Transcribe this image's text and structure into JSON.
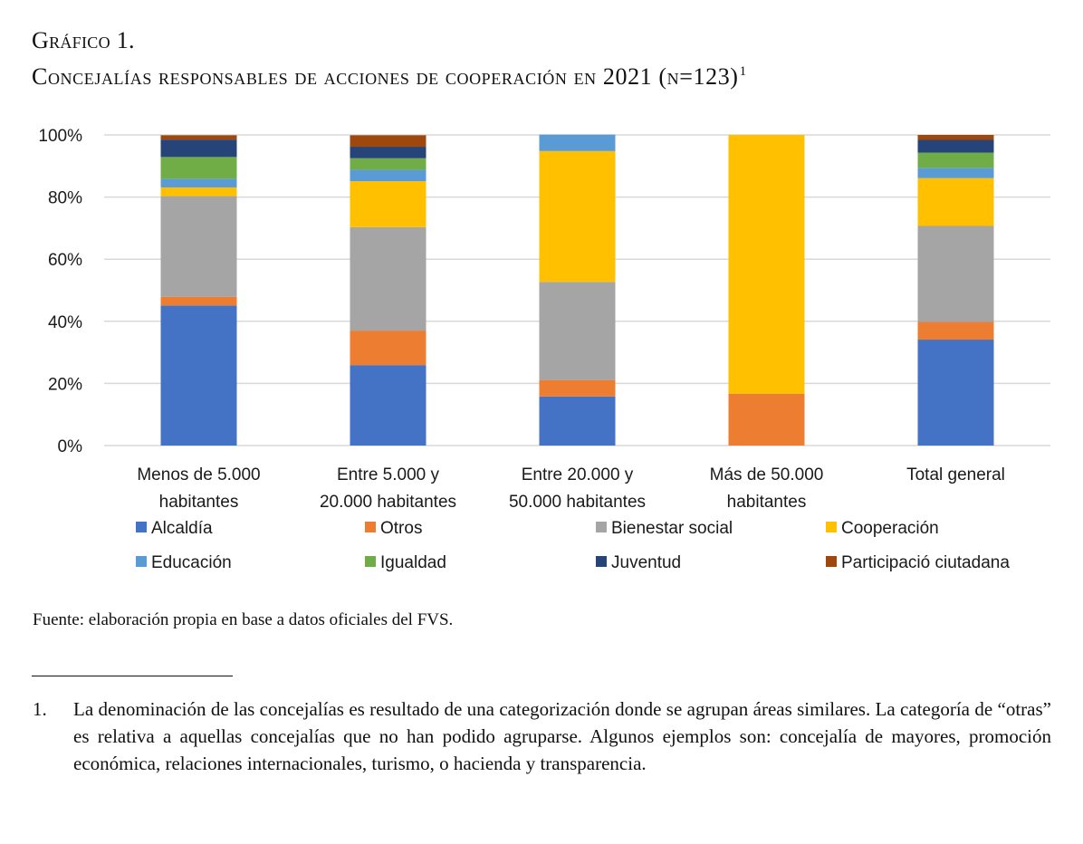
{
  "figure": {
    "label": "Gráfico 1.",
    "title": "Concejalías responsables de acciones de cooperación en 2021 (n=123)",
    "title_footnote_mark": "1"
  },
  "chart_data": {
    "type": "bar",
    "stacked": true,
    "percent_stacked": true,
    "title": "Concejalías responsables de acciones de cooperación en 2021 (n=123)",
    "xlabel": "",
    "ylabel": "",
    "ylim": [
      0,
      100
    ],
    "yticks": [
      "0%",
      "20%",
      "40%",
      "60%",
      "80%",
      "100%"
    ],
    "ytick_values": [
      0,
      20,
      40,
      60,
      80,
      100
    ],
    "grid": true,
    "legend_position": "bottom",
    "categories": [
      [
        "Menos de 5.000",
        "habitantes"
      ],
      [
        "Entre 5.000 y",
        "20.000 habitantes"
      ],
      [
        "Entre 20.000 y",
        "50.000 habitantes"
      ],
      [
        "Más de 50.000",
        "habitantes"
      ],
      [
        "Total general"
      ]
    ],
    "series": [
      {
        "name": "Alcaldía",
        "color": "#4472C4",
        "values": [
          45.1,
          25.9,
          15.8,
          0.0,
          34.1
        ]
      },
      {
        "name": "Otros",
        "color": "#ED7D31",
        "values": [
          2.8,
          11.1,
          5.3,
          16.7,
          5.7
        ]
      },
      {
        "name": "Bienestar social",
        "color": "#A5A5A5",
        "values": [
          32.4,
          33.3,
          31.6,
          0.0,
          30.9
        ]
      },
      {
        "name": "Cooperación",
        "color": "#FFC000",
        "values": [
          2.8,
          14.8,
          42.1,
          83.3,
          15.4
        ]
      },
      {
        "name": "Educación",
        "color": "#5B9BD5",
        "values": [
          2.8,
          3.7,
          5.3,
          0.0,
          3.3
        ]
      },
      {
        "name": "Igualdad",
        "color": "#70AD47",
        "values": [
          7.0,
          3.7,
          0.0,
          0.0,
          4.9
        ]
      },
      {
        "name": "Juventud",
        "color": "#264478",
        "values": [
          5.6,
          3.7,
          0.0,
          0.0,
          4.1
        ]
      },
      {
        "name": "Participació ciutadana",
        "color": "#9E480E",
        "values": [
          1.4,
          3.7,
          0.0,
          0.0,
          1.6
        ]
      }
    ]
  },
  "source": "Fuente: elaboración propia en base a datos oficiales del FVS.",
  "footnote": {
    "number": "1.",
    "text": "La denominación de las concejalías es resultado de una categorización donde se agrupan áreas similares. La categoría de “otras” es relativa a aquellas concejalías que no han podido agruparse. Algunos ejemplos son: concejalía de mayores, promoción económica, relaciones internacio­nales, turismo, o hacienda y transparencia."
  }
}
